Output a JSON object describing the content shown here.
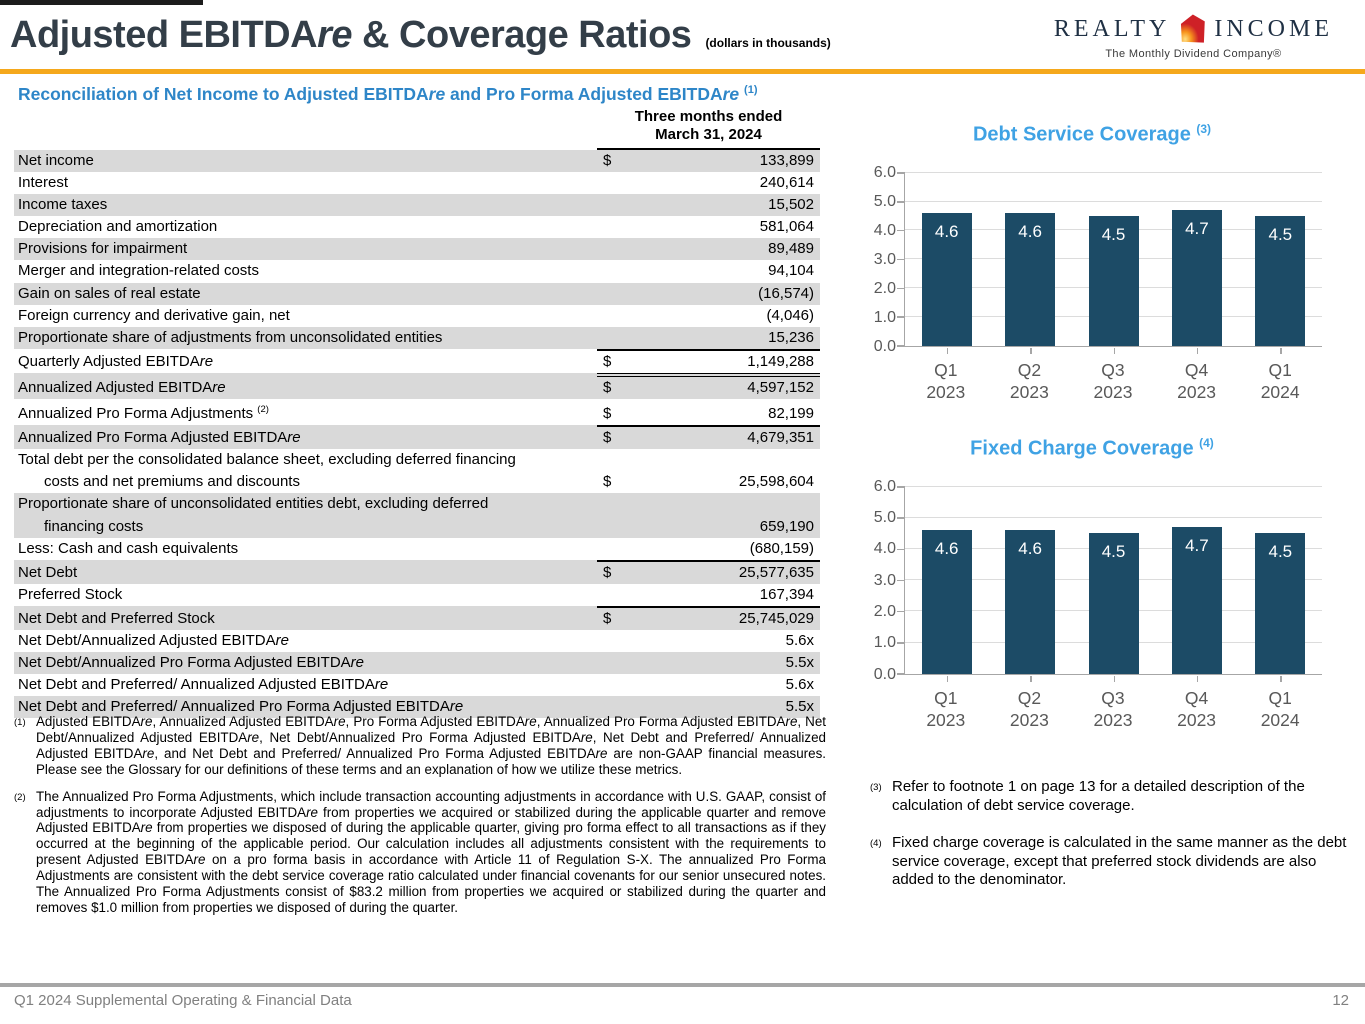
{
  "header": {
    "title": "Adjusted EBITDAre & Coverage Ratios",
    "units_note": "(dollars in thousands)",
    "logo": {
      "left": "REALTY",
      "right": "INCOME",
      "tagline": "The Monthly Dividend Company®"
    }
  },
  "section": {
    "subtitle": "Reconciliation of Net Income to Adjusted EBITDAre and Pro Forma Adjusted EBITDAre",
    "subtitle_sup": "(1)"
  },
  "colors": {
    "accent_orange": "#F5A81C",
    "subtitle_blue": "#2E86C8",
    "chart_title_blue": "#3FA2E4",
    "bar_navy": "#1C4B66",
    "row_shade_gray": "#D9D9D9",
    "logo_red": "#CE2127"
  },
  "table": {
    "period_header_line1": "Three months ended",
    "period_header_line2": "March 31, 2024",
    "rows": [
      {
        "label": "Net income",
        "dollar": "$",
        "value": "133,899",
        "shaded": true,
        "top": "none"
      },
      {
        "label": "Interest",
        "dollar": "",
        "value": "240,614",
        "shaded": false,
        "top": "none"
      },
      {
        "label": "Income taxes",
        "dollar": "",
        "value": "15,502",
        "shaded": true,
        "top": "none"
      },
      {
        "label": "Depreciation and amortization",
        "dollar": "",
        "value": "581,064",
        "shaded": false,
        "top": "none"
      },
      {
        "label": "Provisions for impairment",
        "dollar": "",
        "value": "89,489",
        "shaded": true,
        "top": "none"
      },
      {
        "label": "Merger and integration-related costs",
        "dollar": "",
        "value": "94,104",
        "shaded": false,
        "top": "none"
      },
      {
        "label": "Gain on sales of real estate",
        "dollar": "",
        "value": "(16,574)",
        "shaded": true,
        "top": "none"
      },
      {
        "label": "Foreign currency and derivative gain, net",
        "dollar": "",
        "value": "(4,046)",
        "shaded": false,
        "top": "none"
      },
      {
        "label": "Proportionate share of adjustments from unconsolidated entities",
        "dollar": "",
        "value": "15,236",
        "shaded": true,
        "top": "none"
      },
      {
        "label": "Quarterly Adjusted EBITDAre",
        "dollar": "$",
        "value": "1,149,288",
        "shaded": false,
        "top": "single"
      },
      {
        "label": "Annualized Adjusted EBITDAre",
        "dollar": "$",
        "value": "4,597,152",
        "shaded": true,
        "top": "double"
      },
      {
        "label": "Annualized Pro Forma Adjustments",
        "sup": "(2)",
        "dollar": "$",
        "value": "82,199",
        "shaded": false,
        "top": "none"
      },
      {
        "label": "Annualized Pro Forma Adjusted EBITDAre",
        "dollar": "$",
        "value": "4,679,351",
        "shaded": true,
        "top": "single"
      },
      {
        "label": "Total debt per the consolidated balance sheet, excluding deferred financing",
        "label2": "costs and net premiums and discounts",
        "dollar": "$",
        "value": "25,598,604",
        "shaded": false,
        "top": "none"
      },
      {
        "label": "Proportionate share of unconsolidated entities debt, excluding deferred",
        "label2": "financing costs",
        "dollar": "",
        "value": "659,190",
        "shaded": true,
        "top": "none"
      },
      {
        "label": "Less: Cash and cash equivalents",
        "dollar": "",
        "value": "(680,159)",
        "shaded": false,
        "top": "none"
      },
      {
        "label": "Net Debt",
        "dollar": "$",
        "value": "25,577,635",
        "shaded": true,
        "top": "single"
      },
      {
        "label": "Preferred Stock",
        "dollar": "",
        "value": "167,394",
        "shaded": false,
        "top": "none"
      },
      {
        "label": "Net Debt and Preferred Stock",
        "dollar": "$",
        "value": "25,745,029",
        "shaded": true,
        "top": "single"
      },
      {
        "label": "Net Debt/Annualized Adjusted EBITDAre",
        "dollar": "",
        "value": "5.6x",
        "shaded": false,
        "top": "none"
      },
      {
        "label": "Net Debt/Annualized Pro Forma Adjusted EBITDAre",
        "dollar": "",
        "value": "5.5x",
        "shaded": true,
        "top": "none"
      },
      {
        "label": "Net Debt and Preferred/ Annualized Adjusted EBITDAre",
        "dollar": "",
        "value": "5.6x",
        "shaded": false,
        "top": "none"
      },
      {
        "label": "Net Debt and Preferred/ Annualized Pro Forma Adjusted EBITDAre",
        "dollar": "",
        "value": "5.5x",
        "shaded": true,
        "top": "none"
      }
    ]
  },
  "chart_data": [
    {
      "type": "bar",
      "title": "Debt Service Coverage",
      "title_sup": "(3)",
      "categories": [
        "Q1 2023",
        "Q2 2023",
        "Q3 2023",
        "Q4 2023",
        "Q1 2024"
      ],
      "values": [
        4.6,
        4.6,
        4.5,
        4.7,
        4.5
      ],
      "xlabel": "",
      "ylabel": "",
      "ylim": [
        0,
        6
      ],
      "ytick_step": 1,
      "grid": true,
      "legend": "none",
      "bar_color": "#1C4B66",
      "label_color": "#FFFFFF"
    },
    {
      "type": "bar",
      "title": "Fixed Charge Coverage",
      "title_sup": "(4)",
      "categories": [
        "Q1 2023",
        "Q2 2023",
        "Q3 2023",
        "Q4 2023",
        "Q1 2024"
      ],
      "values": [
        4.6,
        4.6,
        4.5,
        4.7,
        4.5
      ],
      "xlabel": "",
      "ylabel": "",
      "ylim": [
        0,
        6
      ],
      "ytick_step": 1,
      "grid": true,
      "legend": "none",
      "bar_color": "#1C4B66",
      "label_color": "#FFFFFF"
    }
  ],
  "footnotes_left": [
    {
      "sup": "(1)",
      "text": "Adjusted EBITDAre, Annualized Adjusted EBITDAre, Pro Forma Adjusted EBITDAre, Annualized Pro Forma Adjusted EBITDAre, Net Debt/Annualized Adjusted EBITDAre, Net Debt/Annualized Pro Forma Adjusted EBITDAre, Net Debt and Preferred/ Annualized Adjusted EBITDAre, and Net Debt and Preferred/ Annualized Pro Forma Adjusted EBITDAre are non-GAAP financial measures. Please see the Glossary for our definitions of these terms and an explanation of how we utilize these metrics."
    },
    {
      "sup": "(2)",
      "text": "The Annualized Pro Forma Adjustments, which include transaction accounting adjustments in accordance with U.S. GAAP, consist of adjustments to incorporate Adjusted EBITDAre from properties we acquired or stabilized during the applicable quarter and remove Adjusted EBITDAre from properties we disposed of during the applicable quarter, giving pro forma effect to all transactions as if they occurred at the beginning of the applicable period. Our calculation includes all adjustments consistent with the requirements to present Adjusted EBITDAre on a pro forma basis in accordance with Article 11 of Regulation S-X. The annualized Pro Forma Adjustments are consistent with the debt service coverage ratio calculated under financial covenants for our senior unsecured notes. The Annualized Pro Forma Adjustments consist of $83.2 million from properties we acquired or stabilized during the quarter and removes $1.0 million from properties we disposed of during the quarter."
    }
  ],
  "footnotes_right": [
    {
      "sup": "(3)",
      "text": "Refer to footnote 1 on page 13 for a detailed description of the calculation of debt service coverage."
    },
    {
      "sup": "(4)",
      "text": "Fixed charge coverage is calculated in the same manner as the debt service coverage, except that preferred stock dividends are also added to the denominator."
    }
  ],
  "footer": {
    "left": "Q1 2024 Supplemental Operating & Financial Data",
    "page": "12"
  }
}
